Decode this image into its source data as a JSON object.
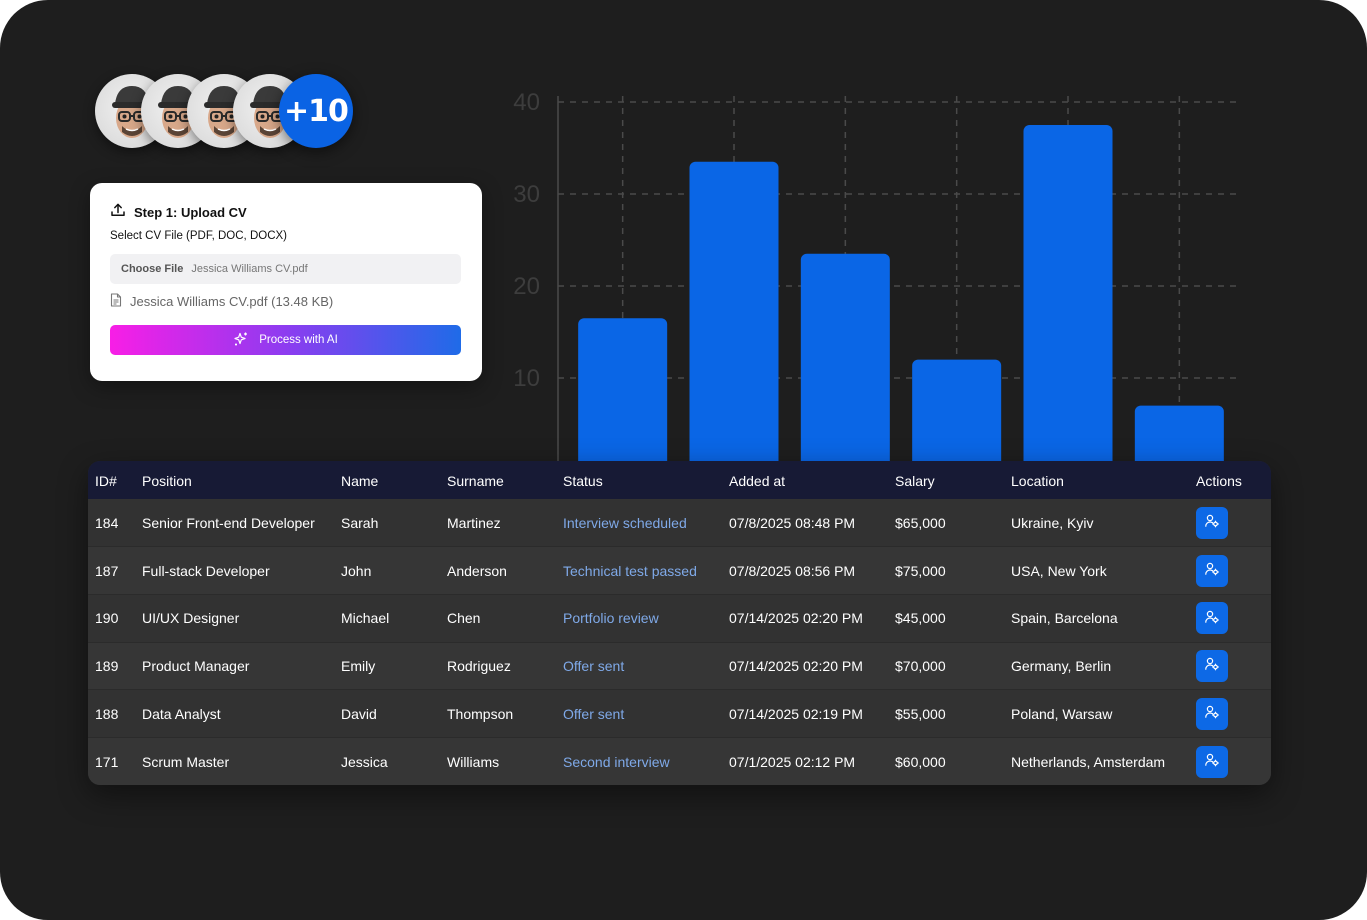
{
  "avatars": {
    "count": 4,
    "more_label": "+10"
  },
  "upload": {
    "title": "Step 1: Upload CV",
    "subtitle": "Select CV File (PDF, DOC, DOCX)",
    "choose_label": "Choose File",
    "chosen_file": "Jessica Williams CV.pdf",
    "file_info": "Jessica Williams CV.pdf (13.48 KB)",
    "process_label": "Process with AI",
    "gradient_colors": [
      "#f81ee6",
      "#8d3cf0",
      "#1f6be8"
    ]
  },
  "chart_data": {
    "type": "bar",
    "categories": [
      "",
      "",
      "",
      "",
      "",
      ""
    ],
    "values": [
      16.5,
      33.5,
      23.5,
      12,
      37.5,
      7
    ],
    "title": "",
    "xlabel": "",
    "ylabel": "",
    "ylim": [
      0,
      40
    ],
    "yticks": [
      10,
      20,
      30,
      40
    ],
    "grid": true,
    "bar_color": "#0a66e6"
  },
  "table": {
    "headers": [
      "ID#",
      "Position",
      "Name",
      "Surname",
      "Status",
      "Added at",
      "Salary",
      "Location",
      "Actions"
    ],
    "rows": [
      {
        "id": "184",
        "position": "Senior Front-end Developer",
        "name": "Sarah",
        "surname": "Martinez",
        "status": "Interview scheduled",
        "added_at": "07/8/2025 08:48 PM",
        "salary": "$65,000",
        "location": "Ukraine, Kyiv"
      },
      {
        "id": "187",
        "position": "Full-stack Developer",
        "name": "John",
        "surname": "Anderson",
        "status": "Technical test passed",
        "added_at": "07/8/2025 08:56 PM",
        "salary": "$75,000",
        "location": "USA, New York"
      },
      {
        "id": "190",
        "position": "UI/UX Designer",
        "name": "Michael",
        "surname": "Chen",
        "status": "Portfolio review",
        "added_at": "07/14/2025 02:20 PM",
        "salary": "$45,000",
        "location": "Spain, Barcelona"
      },
      {
        "id": "189",
        "position": "Product Manager",
        "name": "Emily",
        "surname": "Rodriguez",
        "status": "Offer sent",
        "added_at": "07/14/2025 02:20 PM",
        "salary": "$70,000",
        "location": "Germany, Berlin"
      },
      {
        "id": "188",
        "position": "Data Analyst",
        "name": "David",
        "surname": "Thompson",
        "status": "Offer sent",
        "added_at": "07/14/2025 02:19 PM",
        "salary": "$55,000",
        "location": "Poland, Warsaw"
      },
      {
        "id": "171",
        "position": "Scrum Master",
        "name": "Jessica",
        "surname": "Williams",
        "status": "Second interview",
        "added_at": "07/1/2025 02:12 PM",
        "salary": "$60,000",
        "location": "Netherlands, Amsterdam"
      }
    ],
    "action_icon": "user-settings-icon",
    "status_color": "#7fa9e8",
    "header_bg": "#171a35"
  }
}
